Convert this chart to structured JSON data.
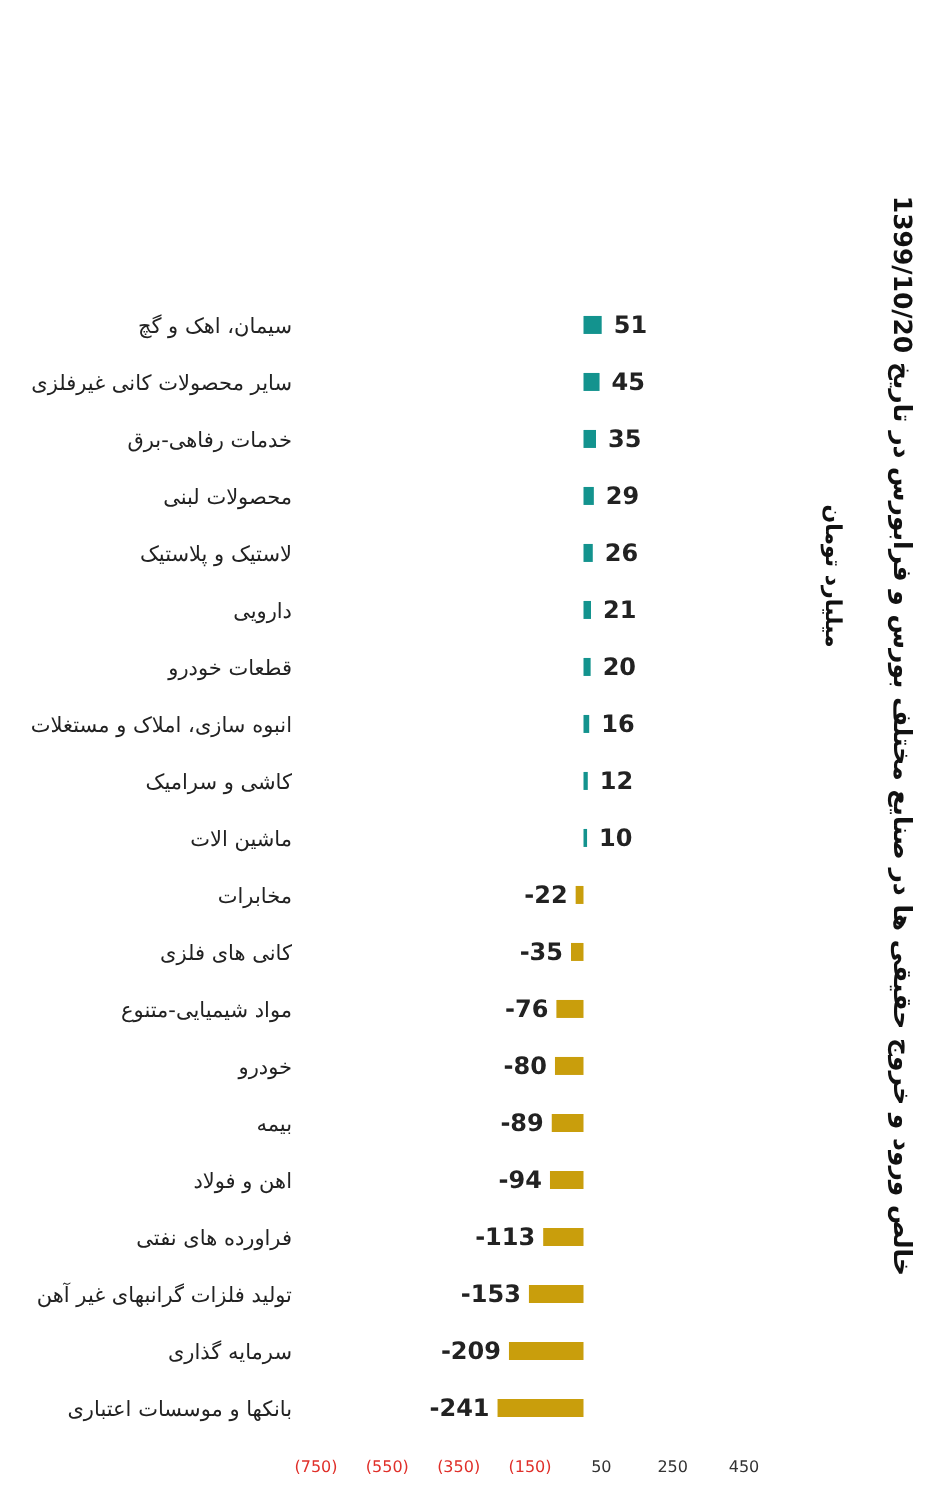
{
  "chart_data": {
    "type": "bar",
    "orientation": "horizontal",
    "title": "خالص ورود و خروج حقیقی ها در صنایع مختلف بورس و فرابورس در تاریخ 1399/10/20",
    "subtitle": "میلیارد تومان",
    "categories": [
      "سیمان، اهک و گچ",
      "سایر محصولات کانی غیرفلزی",
      "خدمات رفاهی-برق",
      "محصولات لبنی",
      "لاستیک و پلاستیک",
      "دارویی",
      "قطعات خودرو",
      "انبوه سازی، املاک و مستغلات",
      "کاشی و سرامیک",
      "ماشین الات",
      "مخابرات",
      "کانی های فلزی",
      "مواد شیمیایی-متنوع",
      "خودرو",
      "بیمه",
      "اهن و فولاد",
      "فراورده های نفتی",
      "تولید فلزات گرانبهای غیر آهن",
      "سرمایه گذاری",
      "بانکها و موسسات اعتباری"
    ],
    "values": [
      51,
      45,
      35,
      29,
      26,
      21,
      20,
      16,
      12,
      10,
      -22,
      -35,
      -76,
      -80,
      -89,
      -94,
      -113,
      -153,
      -209,
      -241
    ],
    "colors": [
      "#13938e",
      "#13938e",
      "#13938e",
      "#13938e",
      "#13938e",
      "#13938e",
      "#13938e",
      "#13938e",
      "#13938e",
      "#13938e",
      "#c99e0c",
      "#c99e0c",
      "#c99e0c",
      "#c99e0c",
      "#c99e0c",
      "#c99e0c",
      "#c99e0c",
      "#c99e0c",
      "#c99e0c",
      "#c99e0c"
    ],
    "xlim": [
      -750,
      450
    ],
    "xticks": [
      {
        "value": -750,
        "label": "(750)"
      },
      {
        "value": -550,
        "label": "(550)"
      },
      {
        "value": -350,
        "label": "(350)"
      },
      {
        "value": -150,
        "label": "(150)"
      },
      50,
      250,
      450
    ],
    "data_labels": true,
    "grid": false,
    "legend": false
  }
}
